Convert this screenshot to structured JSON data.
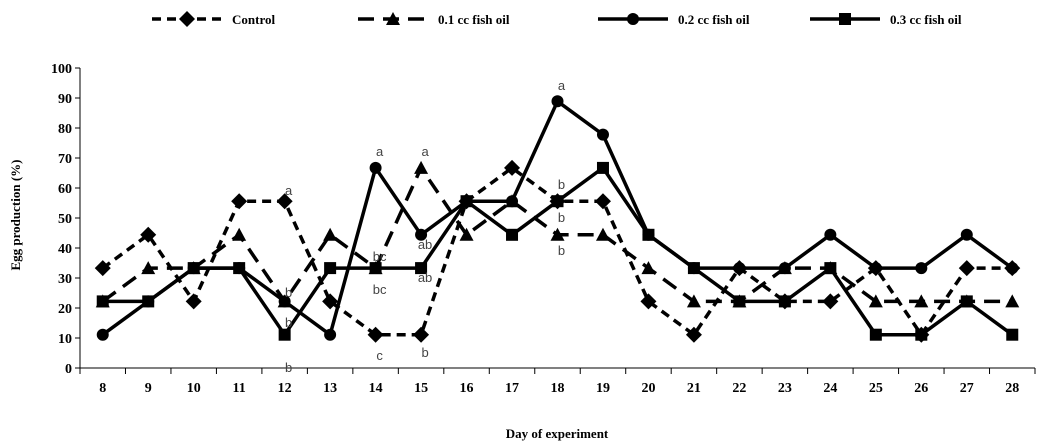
{
  "chart_data": {
    "type": "line",
    "title": "",
    "xlabel": "Day of experiment",
    "ylabel": "Egg production (%)",
    "ylim": [
      0,
      100
    ],
    "yticks": [
      0,
      10,
      20,
      30,
      40,
      50,
      60,
      70,
      80,
      90,
      100
    ],
    "grid": false,
    "legend_position": "top",
    "x": [
      8,
      9,
      10,
      11,
      12,
      13,
      14,
      15,
      16,
      17,
      18,
      19,
      20,
      21,
      22,
      23,
      24,
      25,
      26,
      27,
      28
    ],
    "series": [
      {
        "name": "Control",
        "marker": "diamond",
        "line_style": "dashed",
        "values": [
          33.3,
          44.4,
          22.2,
          55.6,
          55.6,
          22.2,
          11.1,
          11.1,
          55.6,
          66.7,
          55.6,
          55.6,
          22.2,
          11.1,
          33.3,
          22.2,
          22.2,
          33.3,
          11.1,
          33.3,
          33.3
        ]
      },
      {
        "name": "0.1 cc fish oil",
        "marker": "triangle",
        "line_style": "long-dashed",
        "values": [
          22.2,
          33.3,
          33.3,
          44.4,
          22.2,
          44.4,
          33.3,
          66.7,
          44.4,
          55.6,
          44.4,
          44.4,
          33.3,
          22.2,
          22.2,
          33.3,
          33.3,
          22.2,
          22.2,
          22.2,
          22.2
        ]
      },
      {
        "name": "0.2 cc fish oil",
        "marker": "circle",
        "line_style": "solid",
        "values": [
          11.1,
          22.2,
          33.3,
          33.3,
          22.2,
          11.1,
          66.7,
          44.4,
          55.6,
          55.6,
          88.9,
          77.8,
          44.4,
          33.3,
          33.3,
          33.3,
          44.4,
          33.3,
          33.3,
          44.4,
          33.3
        ]
      },
      {
        "name": "0.3 cc fish oil",
        "marker": "square",
        "line_style": "solid",
        "values": [
          22.2,
          22.2,
          33.3,
          33.3,
          11.1,
          33.3,
          33.3,
          33.3,
          55.6,
          44.4,
          55.6,
          66.7,
          44.4,
          33.3,
          22.2,
          22.2,
          33.3,
          11.1,
          11.1,
          22.2,
          11.1
        ]
      }
    ],
    "annotations": [
      {
        "text": "a",
        "x": 12,
        "y": 59
      },
      {
        "text": "b",
        "x": 12,
        "y": 25
      },
      {
        "text": "b",
        "x": 12,
        "y": 15
      },
      {
        "text": "b",
        "x": 12,
        "y": 0
      },
      {
        "text": "a",
        "x": 14,
        "y": 72
      },
      {
        "text": "bc",
        "x": 14,
        "y": 37
      },
      {
        "text": "bc",
        "x": 14,
        "y": 26
      },
      {
        "text": "c",
        "x": 14,
        "y": 4
      },
      {
        "text": "a",
        "x": 15,
        "y": 72
      },
      {
        "text": "ab",
        "x": 15,
        "y": 41
      },
      {
        "text": "ab",
        "x": 15,
        "y": 30
      },
      {
        "text": "b",
        "x": 15,
        "y": 5
      },
      {
        "text": "a",
        "x": 18,
        "y": 94
      },
      {
        "text": "b",
        "x": 18,
        "y": 61
      },
      {
        "text": "b",
        "x": 18,
        "y": 50
      },
      {
        "text": "b",
        "x": 18,
        "y": 39
      }
    ]
  }
}
